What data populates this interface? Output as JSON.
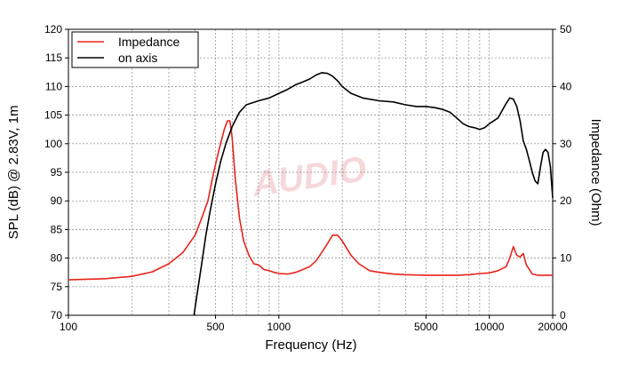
{
  "chart_data": {
    "type": "line",
    "title": "",
    "xlabel": "Frequency (Hz)",
    "ylabel_left": "SPL (dB) @ 2.83V, 1m",
    "ylabel_right": "Impedance (Ohm)",
    "x_scale": "log",
    "xlim": [
      100,
      20000
    ],
    "ylim_left": [
      70,
      120
    ],
    "ylim_right": [
      0,
      50
    ],
    "grid": true,
    "legend_position": "top-left",
    "x_tick_labels": [
      "100",
      "500",
      "1000",
      "5000",
      "10000",
      "20000"
    ],
    "x_tick_values": [
      100,
      500,
      1000,
      5000,
      10000,
      20000
    ],
    "y_left_tick_labels": [
      "70",
      "75",
      "80",
      "85",
      "90",
      "95",
      "100",
      "105",
      "110",
      "115",
      "120"
    ],
    "y_right_tick_labels": [
      "0",
      "10",
      "20",
      "30",
      "40",
      "50"
    ],
    "watermark": "AUDIO",
    "series": [
      {
        "name": "Impedance",
        "axis": "right",
        "color": "#e8231b",
        "x": [
          100,
          150,
          200,
          250,
          300,
          350,
          400,
          430,
          460,
          490,
          520,
          550,
          570,
          585,
          600,
          620,
          650,
          680,
          720,
          760,
          800,
          850,
          900,
          950,
          1000,
          1100,
          1200,
          1300,
          1400,
          1500,
          1600,
          1700,
          1800,
          1900,
          2000,
          2200,
          2400,
          2700,
          3000,
          3500,
          4000,
          5000,
          6000,
          7000,
          8000,
          9000,
          10000,
          11000,
          12000,
          12500,
          13000,
          13500,
          14000,
          14500,
          15000,
          16000,
          17000,
          18000,
          20000
        ],
        "y": [
          6.2,
          6.4,
          6.8,
          7.6,
          9.0,
          11.0,
          14.0,
          17.0,
          20.0,
          25.0,
          29.0,
          32.5,
          34.0,
          34.0,
          31.0,
          24.0,
          17.0,
          13.0,
          10.5,
          9.0,
          8.8,
          8.0,
          7.8,
          7.5,
          7.3,
          7.2,
          7.5,
          8.0,
          8.5,
          9.5,
          11.0,
          12.5,
          14.0,
          14.0,
          13.0,
          10.5,
          9.0,
          7.8,
          7.5,
          7.2,
          7.1,
          7.0,
          7.0,
          7.0,
          7.1,
          7.3,
          7.4,
          7.8,
          8.5,
          10.0,
          12.0,
          10.5,
          10.2,
          10.8,
          8.8,
          7.2,
          7.0,
          7.0,
          7.0
        ]
      },
      {
        "name": "on axis",
        "axis": "left",
        "color": "#000000",
        "x": [
          395,
          410,
          430,
          450,
          470,
          500,
          530,
          560,
          600,
          650,
          700,
          800,
          900,
          1000,
          1100,
          1200,
          1300,
          1400,
          1500,
          1600,
          1700,
          1800,
          1900,
          2000,
          2200,
          2500,
          3000,
          3500,
          4000,
          4500,
          5000,
          5500,
          6000,
          6500,
          7000,
          7500,
          8000,
          8500,
          9000,
          9500,
          10000,
          11000,
          12000,
          12500,
          13000,
          13500,
          14000,
          14500,
          15000,
          15500,
          16000,
          16500,
          17000,
          17500,
          18000,
          18500,
          19000,
          19500,
          20000
        ],
        "y": [
          70.0,
          74.0,
          79.0,
          84.0,
          88.0,
          93.0,
          97.0,
          100.0,
          103.0,
          105.5,
          106.8,
          107.5,
          108.0,
          108.8,
          109.5,
          110.3,
          110.8,
          111.3,
          112.0,
          112.4,
          112.3,
          111.8,
          111.0,
          110.0,
          108.8,
          108.0,
          107.5,
          107.3,
          106.8,
          106.5,
          106.5,
          106.3,
          106.0,
          105.5,
          104.5,
          103.5,
          103.0,
          102.8,
          102.5,
          102.8,
          103.5,
          104.5,
          107.0,
          108.0,
          107.8,
          106.5,
          104.0,
          100.5,
          99.0,
          97.0,
          95.0,
          93.5,
          93.0,
          96.0,
          98.5,
          99.0,
          98.5,
          96.0,
          90.5
        ]
      }
    ]
  }
}
